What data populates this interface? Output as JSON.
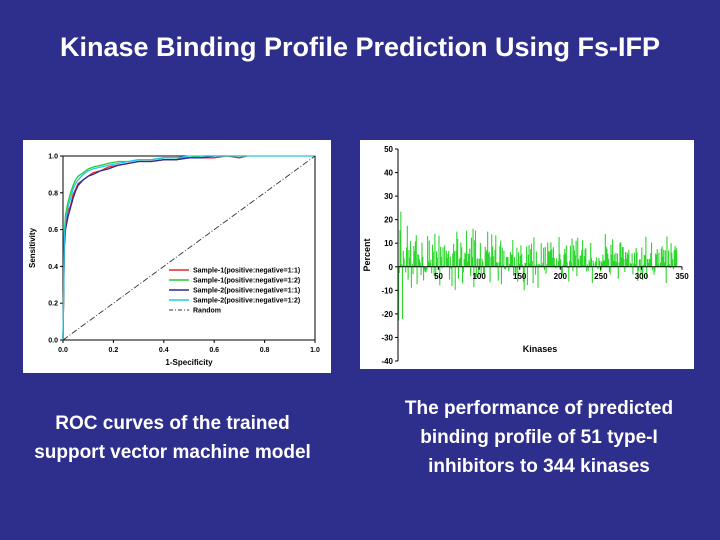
{
  "slide": {
    "title": "Kinase Binding Profile Prediction Using Fs-IFP",
    "caption_left": "ROC curves of  the trained support vector machine model",
    "caption_right": "The performance of predicted  binding profile of 51 type-I inhibitors to 344 kinases"
  },
  "colors": {
    "background": "#2e2e8c",
    "series": [
      "#e8262b",
      "#22cc33",
      "#2a2aa0",
      "#22c8e8"
    ],
    "random": "#333333",
    "bars": "#2ad62a"
  },
  "chart_data": [
    {
      "type": "line",
      "xlabel": "1-Specificity",
      "ylabel": "Sensitivity",
      "xlim": [
        0.0,
        1.0
      ],
      "ylim": [
        0.0,
        1.0
      ],
      "xticks": [
        "0.0",
        "0.2",
        "0.4",
        "0.6",
        "0.8",
        "1.0"
      ],
      "yticks": [
        "0.0",
        "0.2",
        "0.4",
        "0.6",
        "0.8",
        "1.0"
      ],
      "legend_position": "bottom-right",
      "grid": false,
      "series": [
        {
          "name": "Sample-1(positive:negative=1:1)",
          "x": [
            0,
            0.005,
            0.01,
            0.02,
            0.03,
            0.04,
            0.05,
            0.06,
            0.08,
            0.1,
            0.12,
            0.15,
            0.18,
            0.22,
            0.26,
            0.3,
            0.35,
            0.4,
            0.45,
            0.5,
            0.55,
            0.6,
            0.65,
            0.7,
            0.73
          ],
          "y": [
            0,
            0.52,
            0.62,
            0.7,
            0.73,
            0.79,
            0.82,
            0.85,
            0.87,
            0.89,
            0.91,
            0.92,
            0.94,
            0.95,
            0.96,
            0.97,
            0.97,
            0.98,
            0.98,
            0.99,
            0.99,
            0.99,
            1.0,
            0.99,
            1.0
          ]
        },
        {
          "name": "Sample-1(positive:negative=1:2)",
          "x": [
            0,
            0.005,
            0.01,
            0.02,
            0.03,
            0.04,
            0.05,
            0.06,
            0.08,
            0.1,
            0.12,
            0.15,
            0.18,
            0.22,
            0.26,
            0.3,
            0.35,
            0.4,
            0.45,
            0.5,
            0.55,
            0.6,
            0.65,
            0.7,
            0.73
          ],
          "y": [
            0,
            0.58,
            0.68,
            0.75,
            0.8,
            0.84,
            0.87,
            0.89,
            0.91,
            0.93,
            0.94,
            0.95,
            0.96,
            0.97,
            0.97,
            0.98,
            0.98,
            0.99,
            0.99,
            0.99,
            1.0,
            1.0,
            1.0,
            1.0,
            1.0
          ]
        },
        {
          "name": "Sample-2(positive:negative=1:1)",
          "x": [
            0,
            0.005,
            0.01,
            0.02,
            0.03,
            0.04,
            0.05,
            0.06,
            0.08,
            0.1,
            0.12,
            0.15,
            0.18,
            0.22,
            0.26,
            0.3,
            0.35,
            0.4,
            0.45,
            0.5,
            0.55,
            0.6
          ],
          "y": [
            0,
            0.5,
            0.6,
            0.67,
            0.72,
            0.77,
            0.81,
            0.84,
            0.87,
            0.89,
            0.9,
            0.92,
            0.93,
            0.95,
            0.96,
            0.97,
            0.97,
            0.98,
            0.98,
            0.99,
            0.99,
            1.0
          ]
        },
        {
          "name": "Sample-2(positive:negative=1:2)",
          "x": [
            0,
            0.005,
            0.01,
            0.02,
            0.03,
            0.04,
            0.05,
            0.06,
            0.08,
            0.1,
            0.12,
            0.15,
            0.18,
            0.22,
            0.26,
            0.3,
            0.35,
            0.4,
            0.45,
            0.5,
            0.55,
            0.6,
            0.65,
            0.7,
            0.8,
            0.9,
            1.0
          ],
          "y": [
            0,
            0.55,
            0.65,
            0.72,
            0.77,
            0.82,
            0.85,
            0.87,
            0.9,
            0.92,
            0.93,
            0.94,
            0.95,
            0.96,
            0.97,
            0.98,
            0.98,
            0.99,
            0.99,
            1.0,
            1.0,
            1.0,
            1.0,
            1.0,
            1.0,
            1.0,
            1.0
          ]
        },
        {
          "name": "Random",
          "x": [
            0,
            1
          ],
          "y": [
            0,
            1
          ]
        }
      ]
    },
    {
      "type": "bar",
      "xlabel": "Kinases",
      "ylabel": "Percent",
      "xlim": [
        0,
        350
      ],
      "ylim": [
        -40,
        50
      ],
      "xticks": [
        "50",
        "100",
        "150",
        "200",
        "250",
        "300",
        "350"
      ],
      "yticks": [
        "-40",
        "-30",
        "-20",
        "-10",
        "0",
        "10",
        "20",
        "30",
        "40",
        "50"
      ],
      "grid": false,
      "values": [
        -22.9,
        -2.7,
        15.6,
        23.4,
        1.1,
        -22.2,
        6.8,
        3.6,
        0.6,
        -2.4,
        8.2,
        17.4,
        -5.5,
        7.1,
        3.8,
        10.9,
        -8.9,
        1.3,
        -3.1,
        8.8,
        6.6,
        10.8,
        13.4,
        -7.4,
        5.4,
        5.0,
        3.1,
        1.8,
        -3.5,
        10.2,
        4.2,
        -5.8,
        -1.5,
        -2.2,
        -2.4,
        -1.3,
        13.0,
        2.3,
        11.1,
        1.7,
        3.0,
        -2.7,
        9.4,
        6.4,
        -3.8,
        14.0,
        -5.3,
        6.6,
        4.0,
        -1.3,
        13.2,
        -7.9,
        8.5,
        4.3,
        -0.6,
        8.3,
        0.6,
        9.1,
        0.1,
        6.8,
        3.8,
        5.4,
        6.8,
        -5.4,
        4.3,
        -0.8,
        -8.2,
        5.6,
        9.8,
        6.6,
        -9.8,
        6.8,
        14.9,
        11.8,
        -5.1,
        3.2,
        3.9,
        10.3,
        8.2,
        -7.0,
        -2.3,
        3.3,
        6.0,
        5.5,
        15.3,
        2.2,
        5.4,
        5.5,
        7.7,
        -4.0,
        12.4,
        4.2,
        16.1,
        -8.6,
        11.3,
        15.4,
        -4.3,
        3.2,
        3.7,
        -3.1,
        3.3,
        10.1,
        -3.6,
        3.4,
        2.3,
        -2.7,
        -2.7,
        8.5,
        6.4,
        7.2,
        14.9,
        5.6,
        6.3,
        -6.6,
        4.2,
        13.8,
        8.6,
        4.5,
        0.6,
        7.2,
        13.3,
        2.0,
        1.7,
        -5.9,
        1.9,
        8.7,
        11.1,
        -7.4,
        8.1,
        0.8,
        6.8,
        -1.0,
        -1.1,
        4.1,
        4.1,
        4.2,
        -1.9,
        1.3,
        6.2,
        5.2,
        5.2,
        11.4,
        -3.8,
        4.1,
        -2.3,
        -3.6,
        8.1,
        -6.3,
        6.1,
        1.2,
        4.5,
        9.1,
        5.3,
        0.8,
        -6.4,
        -9.9,
        1.6,
        1.6,
        8.6,
        -7.8,
        5.2,
        9.2,
        1.4,
        7.5,
        9.8,
        2.5,
        -6.9,
        12.5,
        0.7,
        -3.4,
        6.5,
        1.1,
        -8.9,
        1.3,
        1.0,
        0.6,
        10.0,
        0.7,
        1.7,
        8.1,
        -1.5,
        8.4,
        -3.0,
        1.1,
        10.3,
        6.7,
        6.1,
        6.8,
        10.3,
        7.4,
        3.9,
        8.3,
        3.8,
        0.7,
        -0.6,
        3.6,
        0.2,
        2.4,
        12.6,
        5.4,
        3.2,
        -3.1,
        -3.8,
        0.9,
        5.2,
        7.6,
        5.7,
        9.0,
        2.0,
        -0.5,
        -6.3,
        2.6,
        8.9,
        1.8,
        12.0,
        -1.9,
        9.1,
        7.0,
        4.8,
        11.1,
        -4.0,
        12.3,
        3.3,
        -0.4,
        4.6,
        4.9,
        7.1,
        11.3,
        0.7,
        4.5,
        7.4,
        7.9,
        -2.0,
        1.0,
        -1.7,
        3.0,
        1.8,
        10.1,
        3.8,
        -6.9,
        2.6,
        1.4,
        -0.3,
        2.2,
        4.0,
        0.3,
        -1.0,
        3.7,
        2.7,
        -1.9,
        2.3,
        1.8,
        5.2,
        2.7,
        2.6,
        13.9,
        8.5,
        7.7,
        5.6,
        3.4,
        -2.2,
        -3.2,
        9.3,
        5.2,
        11.7,
        2.6,
        5.3,
        2.3,
        5.9,
        2.0,
        5.6,
        -5.1,
        1.8,
        10.1,
        10.4,
        4.2,
        8.4,
        8.3,
        3.3,
        -2.2,
        6.3,
        3.5,
        6.0,
        5.1,
        7.2,
        0.5,
        1.6,
        1.2,
        5.7,
        -3.2,
        1.5,
        6.0,
        1.1,
        8.0,
        6.2,
        -6.0,
        -1.8,
        3.1,
        3.2,
        -3.4,
        8.2,
        -5.6,
        0.8,
        5.0,
        4.9,
        12.8,
        -4.6,
        3.3,
        1.6,
        3.3,
        3.3,
        5.8,
        10.3,
        -1.5,
        -0.2,
        -3.4,
        -2.0,
        5.6,
        5.1,
        7.5,
        1.0,
        5.9,
        0.3,
        1.7,
        7.7,
        8.7,
        4.3,
        7.2,
        1.9,
        7.0,
        -6.9,
        12.9,
        0.7,
        6.9,
        1.1,
        -0.5,
        10.0,
        6.0,
        3.2,
        -1.1,
        7.1,
        8.9,
        7.0,
        7.9
      ]
    }
  ]
}
